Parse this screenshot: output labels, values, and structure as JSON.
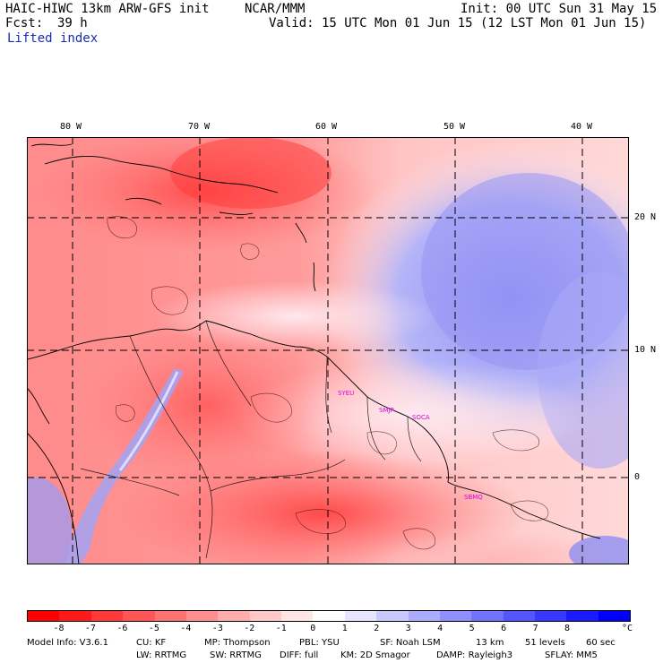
{
  "header": {
    "model_title": "HAIC-HIWC 13km ARW-GFS init",
    "org": "NCAR/MMM",
    "init": "Init: 00 UTC Sun 31 May 15",
    "fcst_label": "Fcst:",
    "fcst_value": "39 h",
    "valid": "Valid: 15 UTC Mon 01 Jun 15 (12 LST Mon 01 Jun 15)",
    "field": "Lifted index"
  },
  "map": {
    "lon_labels": [
      "80 W",
      "70 W",
      "60 W",
      "50 W",
      "40 W"
    ],
    "lat_labels": [
      "20 N",
      "10 N",
      "0"
    ],
    "stations": [
      "SYEU",
      "SMJP",
      "SOCA",
      "SBMQ"
    ]
  },
  "colorbar": {
    "colors": [
      "#ff0000",
      "#ff1a1a",
      "#ff3838",
      "#ff5555",
      "#ff7272",
      "#ff8f8f",
      "#ffacac",
      "#ffc9c9",
      "#ffe6e6",
      "#ffffff",
      "#e6e6ff",
      "#c9c9ff",
      "#acacff",
      "#8f8fff",
      "#7272ff",
      "#5555ff",
      "#3838ff",
      "#1a1aff",
      "#0000ff"
    ],
    "labels": [
      "-8",
      "-7",
      "-6",
      "-5",
      "-4",
      "-3",
      "-2",
      "-1",
      "0",
      "1",
      "2",
      "3",
      "4",
      "5",
      "6",
      "7",
      "8"
    ],
    "unit": "°C"
  },
  "footer": {
    "line1": {
      "model_info": "Model Info: V3.6.1",
      "cu": "CU: KF",
      "mp": "MP: Thompson",
      "pbl": "PBL: YSU",
      "sf": "SF: Noah LSM",
      "res": "13 km",
      "levels": "51 levels",
      "dt": "60 sec"
    },
    "line2": {
      "lw": "LW: RRTMG",
      "sw": "SW: RRTMG",
      "diff": "DIFF: full",
      "km": "KM: 2D Smagor",
      "damp": "DAMP: Rayleigh3",
      "sflay": "SFLAY: MM5"
    }
  }
}
